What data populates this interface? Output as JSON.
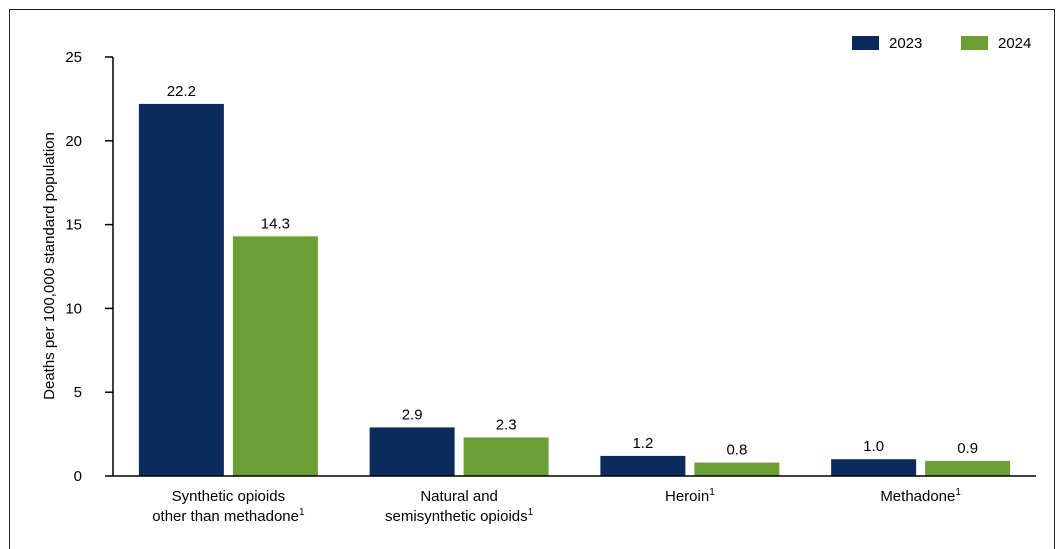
{
  "chart_data": {
    "type": "bar",
    "categories": [
      [
        "Synthetic opioids",
        "other than methadone",
        "1"
      ],
      [
        "Natural and",
        "semisynthetic opioids",
        "1"
      ],
      [
        "Heroin",
        "1"
      ],
      [
        "Methadone",
        "1"
      ]
    ],
    "series": [
      {
        "name": "2023",
        "color": "#0b2b5c",
        "values": [
          22.2,
          2.9,
          1.2,
          1.0
        ],
        "labels": [
          "22.2",
          "2.9",
          "1.2",
          "1.0"
        ]
      },
      {
        "name": "2024",
        "color": "#6b9e35",
        "values": [
          14.3,
          2.3,
          0.8,
          0.9
        ],
        "labels": [
          "14.3",
          "2.3",
          "0.8",
          "0.9"
        ]
      }
    ],
    "ylabel": "Deaths per 100,000 standard population",
    "xlabel": "",
    "ylim": [
      0,
      25
    ],
    "yticks": [
      0,
      5,
      10,
      15,
      20,
      25
    ],
    "grid": false,
    "legend_position": "top-right"
  }
}
